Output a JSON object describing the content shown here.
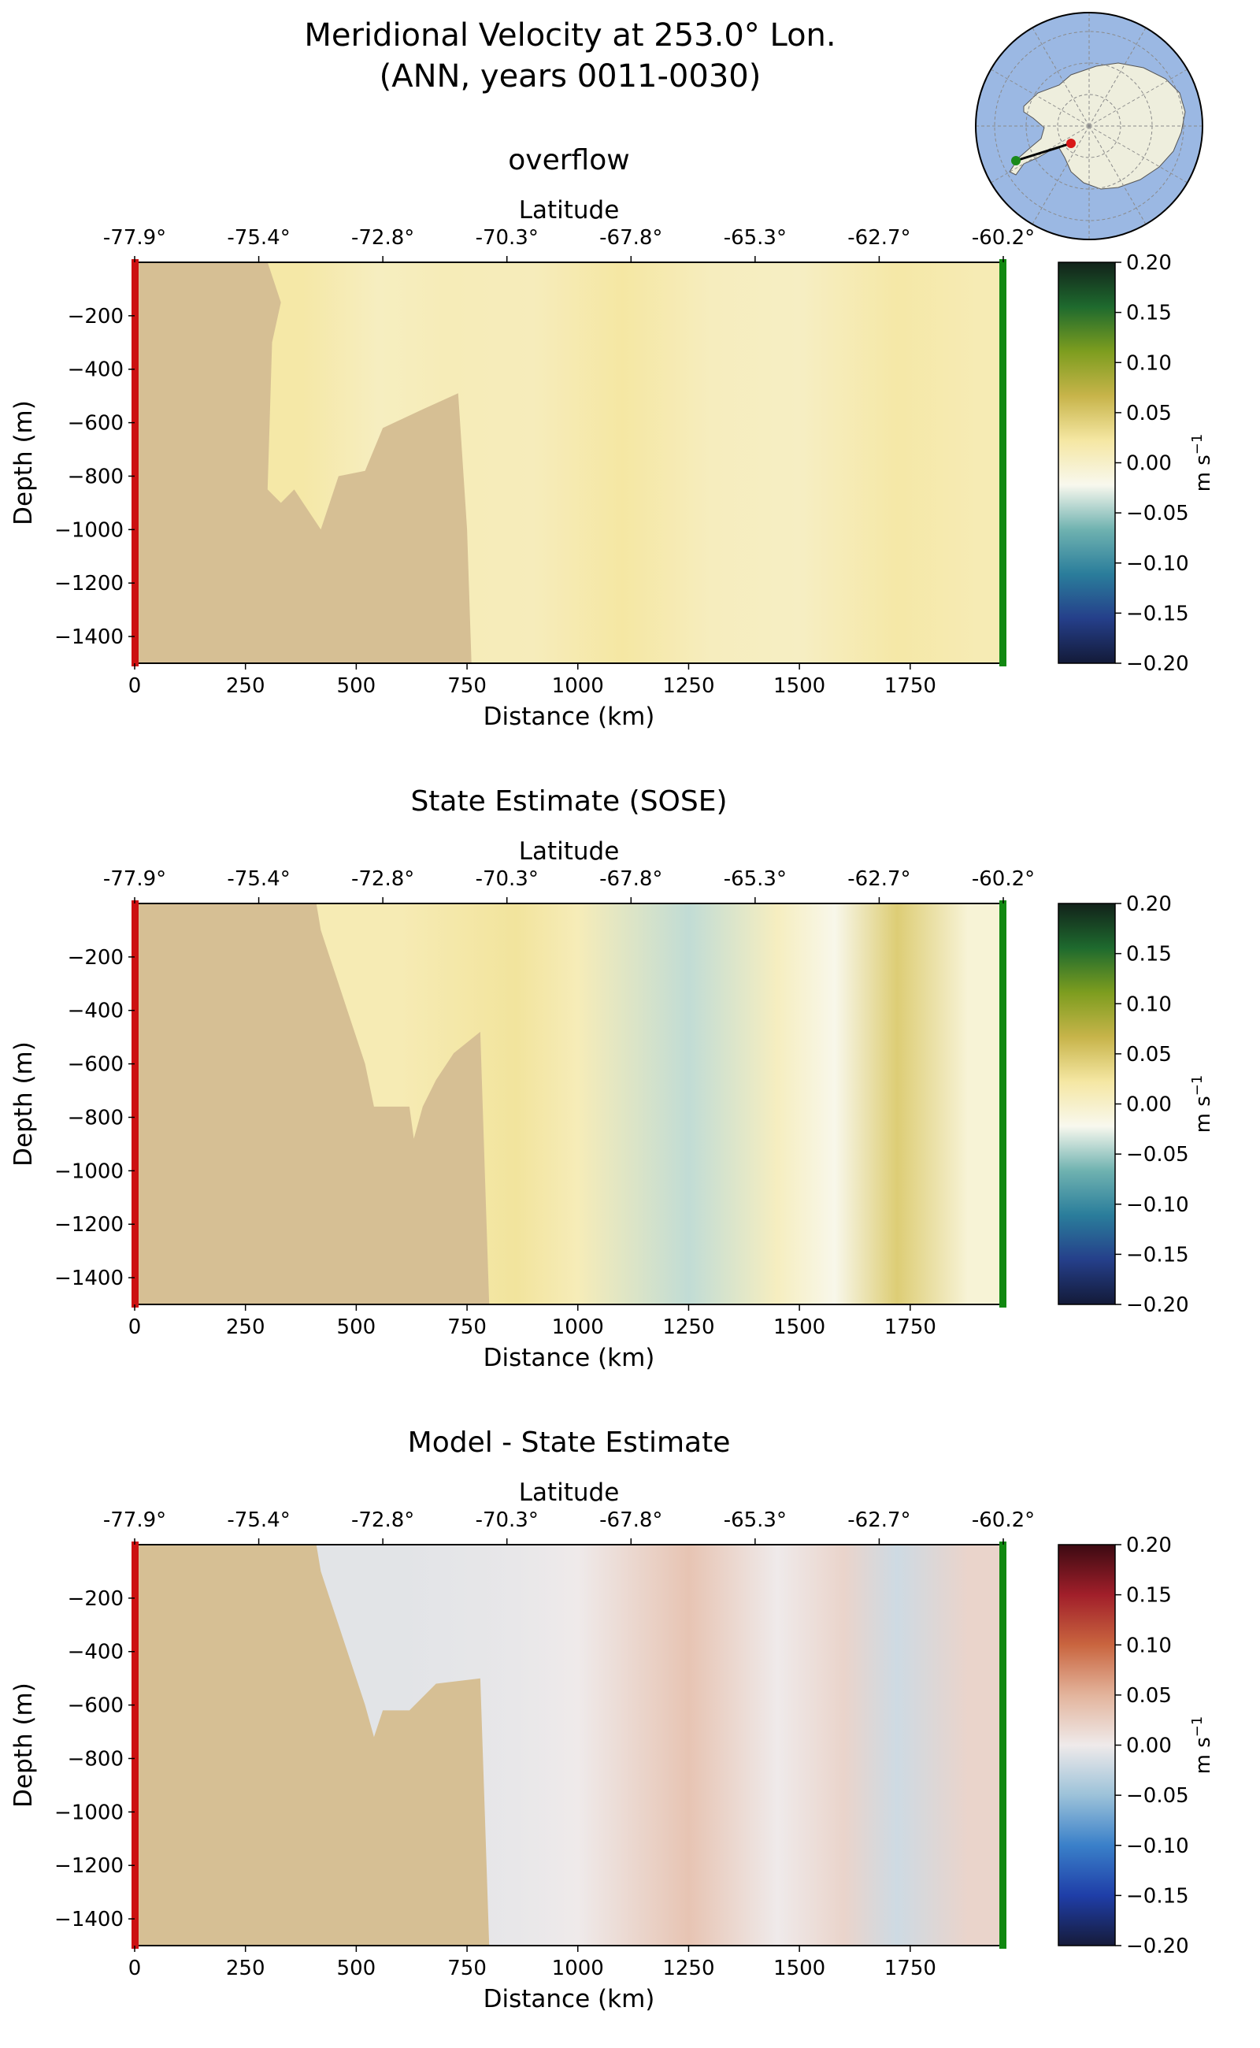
{
  "figure": {
    "title_line1": "Meridional Velocity at 253.0° Lon.",
    "title_line2": "(ANN, years 0011-0030)"
  },
  "inset_map": {
    "description": "polar stereographic map of Antarctica with section line",
    "ocean_color": "#9bb8e3",
    "land_color": "#eeeedd",
    "section_start_color": "#1a8a1a",
    "section_end_color": "#d81818"
  },
  "chart_data": [
    {
      "type": "heatmap",
      "title": "overflow",
      "xlabel": "Distance (km)",
      "ylabel": "Depth (m)",
      "top_xlabel": "Latitude",
      "xlim": [
        0,
        1960
      ],
      "ylim": [
        -1500,
        0
      ],
      "xticks": [
        "0",
        "250",
        "500",
        "750",
        "1000",
        "1250",
        "1500",
        "1750"
      ],
      "xtick_values": [
        0,
        250,
        500,
        750,
        1000,
        1250,
        1500,
        1750
      ],
      "yticks": [
        "−200",
        "−400",
        "−600",
        "−800",
        "−1000",
        "−1200",
        "−1400"
      ],
      "ytick_values": [
        -200,
        -400,
        -600,
        -800,
        -1000,
        -1200,
        -1400
      ],
      "lat_ticks": [
        "-77.9°",
        "-75.4°",
        "-72.8°",
        "-70.3°",
        "-67.8°",
        "-65.3°",
        "-62.7°",
        "-60.2°"
      ],
      "lat_tick_distances": [
        0,
        280,
        560,
        840,
        1120,
        1400,
        1680,
        1960
      ],
      "colorbar": {
        "label": "m s",
        "label_sup": "−1",
        "ticks": [
          "0.20",
          "0.15",
          "0.10",
          "0.05",
          "0.00",
          "−0.05",
          "−0.10",
          "−0.15",
          "−0.20"
        ],
        "tick_values": [
          0.2,
          0.15,
          0.1,
          0.05,
          0.0,
          -0.05,
          -0.1,
          -0.15,
          -0.2
        ],
        "colormap": "delta",
        "stops": [
          "#131a38",
          "#253f8a",
          "#2a7d9b",
          "#6fb2b0",
          "#f8f8ee",
          "#f5e7a3",
          "#c7b44a",
          "#7d9d1f",
          "#1e6a2e",
          "#12221a"
        ]
      },
      "land_color": "#d6bf94",
      "topography": [
        [
          0,
          0
        ],
        [
          300,
          0
        ],
        [
          330,
          -150
        ],
        [
          310,
          -300
        ],
        [
          300,
          -850
        ],
        [
          330,
          -900
        ],
        [
          360,
          -850
        ],
        [
          420,
          -1000
        ],
        [
          460,
          -800
        ],
        [
          520,
          -780
        ],
        [
          560,
          -620
        ],
        [
          650,
          -550
        ],
        [
          730,
          -490
        ],
        [
          750,
          -1000
        ],
        [
          760,
          -1500
        ],
        [
          0,
          -1500
        ]
      ],
      "field_columns": [
        {
          "x": 380,
          "value": 0.02
        },
        {
          "x": 550,
          "value": 0.005
        },
        {
          "x": 700,
          "value": 0.01
        },
        {
          "x": 900,
          "value": 0.008
        },
        {
          "x": 1100,
          "value": 0.022
        },
        {
          "x": 1300,
          "value": 0.006
        },
        {
          "x": 1500,
          "value": 0.003
        },
        {
          "x": 1720,
          "value": 0.02
        },
        {
          "x": 1900,
          "value": 0.012
        }
      ],
      "section_start_color": "#cc1111",
      "section_end_color": "#118811"
    },
    {
      "type": "heatmap",
      "title": "State Estimate (SOSE)",
      "xlabel": "Distance (km)",
      "ylabel": "Depth (m)",
      "top_xlabel": "Latitude",
      "xlim": [
        0,
        1960
      ],
      "ylim": [
        -1500,
        0
      ],
      "xticks": [
        "0",
        "250",
        "500",
        "750",
        "1000",
        "1250",
        "1500",
        "1750"
      ],
      "xtick_values": [
        0,
        250,
        500,
        750,
        1000,
        1250,
        1500,
        1750
      ],
      "yticks": [
        "−200",
        "−400",
        "−600",
        "−800",
        "−1000",
        "−1200",
        "−1400"
      ],
      "ytick_values": [
        -200,
        -400,
        -600,
        -800,
        -1000,
        -1200,
        -1400
      ],
      "lat_ticks": [
        "-77.9°",
        "-75.4°",
        "-72.8°",
        "-70.3°",
        "-67.8°",
        "-65.3°",
        "-62.7°",
        "-60.2°"
      ],
      "lat_tick_distances": [
        0,
        280,
        560,
        840,
        1120,
        1400,
        1680,
        1960
      ],
      "colorbar": {
        "label": "m s",
        "label_sup": "−1",
        "ticks": [
          "0.20",
          "0.15",
          "0.10",
          "0.05",
          "0.00",
          "−0.05",
          "−0.10",
          "−0.15",
          "−0.20"
        ],
        "tick_values": [
          0.2,
          0.15,
          0.1,
          0.05,
          0.0,
          -0.05,
          -0.1,
          -0.15,
          -0.2
        ],
        "colormap": "delta",
        "stops": [
          "#131a38",
          "#253f8a",
          "#2a7d9b",
          "#6fb2b0",
          "#f8f8ee",
          "#f5e7a3",
          "#c7b44a",
          "#7d9d1f",
          "#1e6a2e",
          "#12221a"
        ]
      },
      "land_color": "#d6bf94",
      "topography": [
        [
          0,
          0
        ],
        [
          410,
          0
        ],
        [
          420,
          -100
        ],
        [
          440,
          -200
        ],
        [
          460,
          -300
        ],
        [
          480,
          -400
        ],
        [
          500,
          -500
        ],
        [
          520,
          -600
        ],
        [
          540,
          -760
        ],
        [
          620,
          -760
        ],
        [
          630,
          -880
        ],
        [
          650,
          -760
        ],
        [
          680,
          -660
        ],
        [
          720,
          -560
        ],
        [
          780,
          -480
        ],
        [
          790,
          -1000
        ],
        [
          800,
          -1500
        ],
        [
          0,
          -1500
        ]
      ],
      "field_columns": [
        {
          "x": 600,
          "value": 0.012
        },
        {
          "x": 860,
          "value": 0.025
        },
        {
          "x": 1000,
          "value": 0.01
        },
        {
          "x": 1250,
          "value": -0.04
        },
        {
          "x": 1450,
          "value": 0.005
        },
        {
          "x": 1580,
          "value": -0.02
        },
        {
          "x": 1720,
          "value": 0.045
        },
        {
          "x": 1880,
          "value": -0.008
        }
      ],
      "section_start_color": "#cc1111",
      "section_end_color": "#118811"
    },
    {
      "type": "heatmap",
      "title": "Model - State Estimate",
      "xlabel": "Distance (km)",
      "ylabel": "Depth (m)",
      "top_xlabel": "Latitude",
      "xlim": [
        0,
        1960
      ],
      "ylim": [
        -1500,
        0
      ],
      "xticks": [
        "0",
        "250",
        "500",
        "750",
        "1000",
        "1250",
        "1500",
        "1750"
      ],
      "xtick_values": [
        0,
        250,
        500,
        750,
        1000,
        1250,
        1500,
        1750
      ],
      "yticks": [
        "−200",
        "−400",
        "−600",
        "−800",
        "−1000",
        "−1200",
        "−1400"
      ],
      "ytick_values": [
        -200,
        -400,
        -600,
        -800,
        -1000,
        -1200,
        -1400
      ],
      "lat_ticks": [
        "-77.9°",
        "-75.4°",
        "-72.8°",
        "-70.3°",
        "-67.8°",
        "-65.3°",
        "-62.7°",
        "-60.2°"
      ],
      "lat_tick_distances": [
        0,
        280,
        560,
        840,
        1120,
        1400,
        1680,
        1960
      ],
      "colorbar": {
        "label": "m s",
        "label_sup": "−1",
        "ticks": [
          "0.20",
          "0.15",
          "0.10",
          "0.05",
          "0.00",
          "−0.05",
          "−0.10",
          "−0.15",
          "−0.20"
        ],
        "tick_values": [
          0.2,
          0.15,
          0.1,
          0.05,
          0.0,
          -0.05,
          -0.1,
          -0.15,
          -0.2
        ],
        "colormap": "balance",
        "stops": [
          "#161b3a",
          "#1f3ea8",
          "#3a80c9",
          "#9cc2d9",
          "#efeaea",
          "#e3b49c",
          "#c9653f",
          "#a11f2a",
          "#3c0a12"
        ]
      },
      "land_color": "#d6bf94",
      "topography": [
        [
          0,
          0
        ],
        [
          410,
          0
        ],
        [
          420,
          -100
        ],
        [
          440,
          -200
        ],
        [
          460,
          -300
        ],
        [
          480,
          -400
        ],
        [
          500,
          -500
        ],
        [
          520,
          -600
        ],
        [
          540,
          -720
        ],
        [
          560,
          -620
        ],
        [
          620,
          -620
        ],
        [
          680,
          -520
        ],
        [
          780,
          -500
        ],
        [
          790,
          -1000
        ],
        [
          800,
          -1500
        ],
        [
          0,
          -1500
        ]
      ],
      "field_columns": [
        {
          "x": 600,
          "value": -0.008
        },
        {
          "x": 860,
          "value": -0.004
        },
        {
          "x": 1000,
          "value": 0.0
        },
        {
          "x": 1250,
          "value": 0.035
        },
        {
          "x": 1450,
          "value": 0.0
        },
        {
          "x": 1600,
          "value": 0.02
        },
        {
          "x": 1720,
          "value": -0.02
        },
        {
          "x": 1880,
          "value": 0.02
        }
      ],
      "section_start_color": "#cc1111",
      "section_end_color": "#118811"
    }
  ]
}
